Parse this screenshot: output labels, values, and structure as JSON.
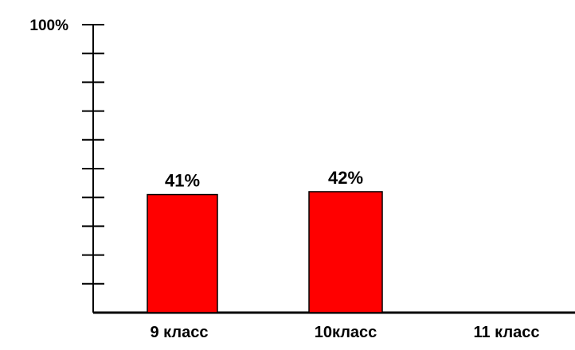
{
  "chart_data": {
    "type": "bar",
    "categories": [
      "9 класс",
      "10класс",
      "11 класс"
    ],
    "values": [
      41,
      42,
      null
    ],
    "data_labels": [
      "41%",
      "42%",
      ""
    ],
    "ylim": [
      0,
      100
    ],
    "y_top_tick_label": "100%",
    "y_tick_count": 10,
    "grid": false,
    "bar_color": "#ff0000",
    "bar_edge_color": "#000000",
    "axis_color": "#000000"
  }
}
